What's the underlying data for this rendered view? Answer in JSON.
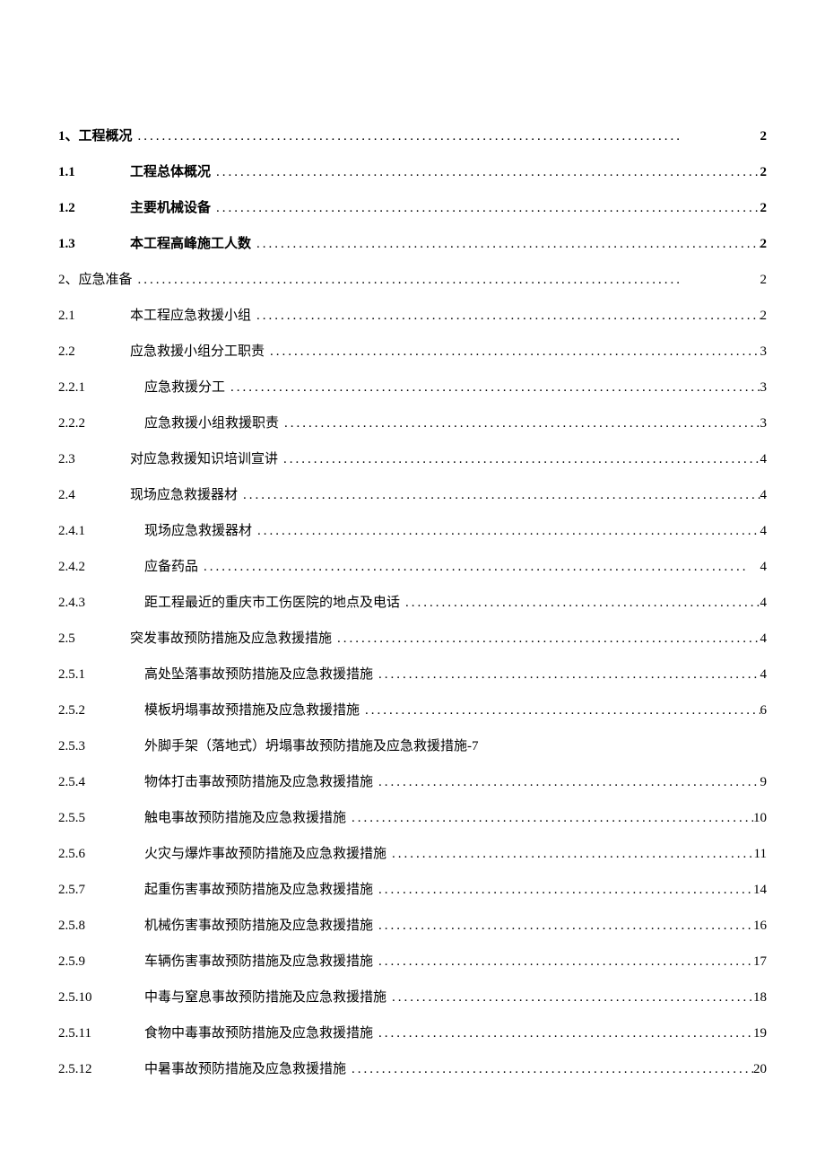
{
  "text_color": "#000000",
  "background_color": "#ffffff",
  "font_family": "SimSun",
  "base_fontsize": 15,
  "toc": [
    {
      "num": "1、",
      "title": "工程概况",
      "page": "2",
      "level": 1,
      "bold": true,
      "nodots": false,
      "noindent": true
    },
    {
      "num": "1.1",
      "title": "工程总体概况",
      "page": "2",
      "level": 2,
      "bold": true,
      "nodots": false
    },
    {
      "num": "1.2",
      "title": "主要机械设备",
      "page": "2",
      "level": 2,
      "bold": true,
      "nodots": false
    },
    {
      "num": "1.3",
      "title": "本工程高峰施工人数",
      "page": "2",
      "level": 2,
      "bold": true,
      "nodots": false
    },
    {
      "num": "2、",
      "title": "应急准备",
      "page": "2",
      "level": 1,
      "bold": false,
      "nodots": false,
      "noindent": true
    },
    {
      "num": "2.1",
      "title": "本工程应急救援小组",
      "page": "2",
      "level": 2,
      "bold": false,
      "nodots": false
    },
    {
      "num": "2.2",
      "title": "应急救援小组分工职责",
      "page": "3",
      "level": 2,
      "bold": false,
      "nodots": false
    },
    {
      "num": "2.2.1",
      "title": "应急救援分工",
      "page": "3",
      "level": 3,
      "bold": false,
      "nodots": false
    },
    {
      "num": "2.2.2",
      "title": "应急救援小组救援职责",
      "page": "3",
      "level": 3,
      "bold": false,
      "nodots": false
    },
    {
      "num": "2.3",
      "title": "对应急救援知识培训宣讲",
      "page": "4",
      "level": 2,
      "bold": false,
      "nodots": false
    },
    {
      "num": "2.4",
      "title": "现场应急救援器材",
      "page": "4",
      "level": 2,
      "bold": false,
      "nodots": false
    },
    {
      "num": "2.4.1",
      "title": "现场应急救援器材",
      "page": "4",
      "level": 3,
      "bold": false,
      "nodots": false
    },
    {
      "num": "2.4.2",
      "title": "应备药品",
      "page": "4",
      "level": 3,
      "bold": false,
      "nodots": false
    },
    {
      "num": "2.4.3",
      "title": "距工程最近的重庆市工伤医院的地点及电话",
      "page": "4",
      "level": 3,
      "bold": false,
      "nodots": false
    },
    {
      "num": "2.5",
      "title": "突发事故预防措施及应急救援措施",
      "page": "4",
      "level": 2,
      "bold": false,
      "nodots": false
    },
    {
      "num": "2.5.1",
      "title": "高处坠落事故预防措施及应急救援措施",
      "page": "4",
      "level": 3,
      "bold": false,
      "nodots": false
    },
    {
      "num": "2.5.2",
      "title": "模板坍塌事故预措施及应急救援措施",
      "page": "6",
      "level": 3,
      "bold": false,
      "nodots": false,
      "titlespace": true
    },
    {
      "num": "2.5.3",
      "title": "外脚手架（落地式）坍塌事故预防措施及应急救援措施-7",
      "page": "",
      "level": 3,
      "bold": false,
      "nodots": true
    },
    {
      "num": "2.5.4",
      "title": "物体打击事故预防措施及应急救援措施",
      "page": "9",
      "level": 3,
      "bold": false,
      "nodots": false,
      "titlespace": true
    },
    {
      "num": "2.5.5",
      "title": "触电事故预防措施及应急救援措施",
      "page": "10",
      "level": 3,
      "bold": false,
      "nodots": false
    },
    {
      "num": "2.5.6",
      "title": "火灾与爆炸事故预防措施及应急救援措施",
      "page": "11",
      "level": 3,
      "bold": false,
      "nodots": false
    },
    {
      "num": "2.5.7",
      "title": "起重伤害事故预防措施及应急救援措施",
      "page": "14",
      "level": 3,
      "bold": false,
      "nodots": false
    },
    {
      "num": "2.5.8",
      "title": "机械伤害事故预防措施及应急救援措施",
      "page": "16",
      "level": 3,
      "bold": false,
      "nodots": false
    },
    {
      "num": "2.5.9",
      "title": "车辆伤害事故预防措施及应急救援措施",
      "page": "17",
      "level": 3,
      "bold": false,
      "nodots": false
    },
    {
      "num": "2.5.10",
      "title": "中毒与窒息事故预防措施及应急救援措施",
      "page": "18",
      "level": 3,
      "bold": false,
      "nodots": false
    },
    {
      "num": "2.5.11",
      "title": "食物中毒事故预防措施及应急救援措施",
      "page": "19",
      "level": 3,
      "bold": false,
      "nodots": false
    },
    {
      "num": "2.5.12",
      "title": "中暑事故预防措施及应急救援措施",
      "page": "20",
      "level": 3,
      "bold": false,
      "nodots": false
    }
  ]
}
